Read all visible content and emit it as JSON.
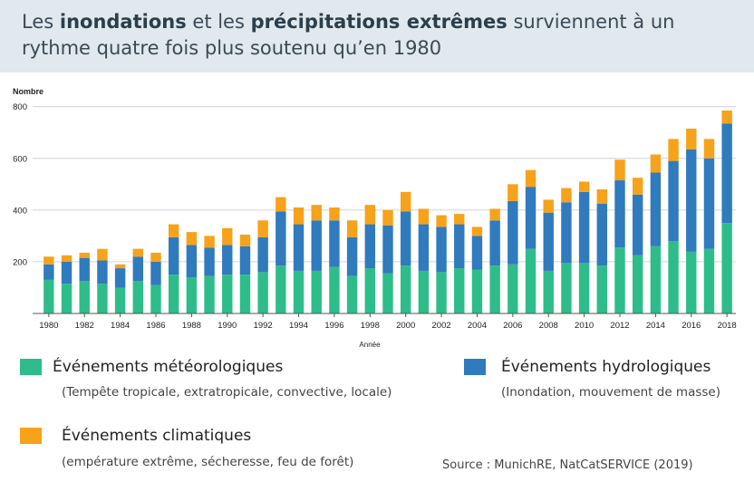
{
  "title": {
    "part1": "Les ",
    "bold1": "inondations",
    "part2": " et les ",
    "bold2": "précipitations extrêmes",
    "part3": " surviennent à un rythme quatre fois plus soutenu qu’en 1980"
  },
  "colors": {
    "meteorological": "#2ebd8a",
    "hydrological": "#2f7bbd",
    "climatological": "#f7a21b"
  },
  "legend": [
    {
      "key": "meteorological",
      "title": "Événements météorologiques",
      "subtitle": "(Tempête tropicale, extratropicale, convective, locale)"
    },
    {
      "key": "hydrological",
      "title": "Événements hydrologiques",
      "subtitle": "(Inondation, mouvement de masse)"
    },
    {
      "key": "climatological",
      "title": "Événements climatiques",
      "subtitle": "(empérature extrême, sécheresse, feu de forêt)"
    }
  ],
  "source": "Source : MunichRE, NatCatSERVICE (2019)",
  "chart_data": {
    "type": "bar",
    "stacked": true,
    "ylabel": "Nombre",
    "xlabel": "Année",
    "ylim": [
      0,
      820
    ],
    "yticks": [
      200,
      400,
      600,
      800
    ],
    "grid": true,
    "categories": [
      "1980",
      "1981",
      "1982",
      "1983",
      "1984",
      "1985",
      "1986",
      "1987",
      "1988",
      "1989",
      "1990",
      "1991",
      "1992",
      "1993",
      "1994",
      "1995",
      "1996",
      "1997",
      "1998",
      "1999",
      "2000",
      "2001",
      "2002",
      "2003",
      "2004",
      "2005",
      "2006",
      "2007",
      "2008",
      "2009",
      "2010",
      "2011",
      "2012",
      "2013",
      "2014",
      "2015",
      "2016",
      "2017",
      "2018"
    ],
    "xtick_labels": [
      "1980",
      "1982",
      "1984",
      "1986",
      "1988",
      "1990",
      "1992",
      "1994",
      "1996",
      "1998",
      "2000",
      "2002",
      "2004",
      "2006",
      "2008",
      "2010",
      "2012",
      "2014",
      "2016",
      "2018"
    ],
    "series": [
      {
        "name": "Événements météorologiques",
        "color": "#2ebd8a",
        "values": [
          130,
          115,
          125,
          115,
          100,
          125,
          110,
          150,
          140,
          145,
          150,
          150,
          160,
          185,
          165,
          165,
          180,
          145,
          175,
          155,
          185,
          165,
          160,
          175,
          170,
          185,
          190,
          250,
          165,
          195,
          195,
          185,
          255,
          225,
          260,
          280,
          240,
          250,
          350
        ]
      },
      {
        "name": "Événements hydrologiques",
        "color": "#2f7bbd",
        "values": [
          60,
          85,
          90,
          90,
          75,
          95,
          90,
          145,
          125,
          110,
          115,
          110,
          135,
          210,
          180,
          195,
          180,
          150,
          170,
          185,
          210,
          180,
          175,
          170,
          130,
          175,
          245,
          240,
          225,
          235,
          275,
          240,
          260,
          235,
          285,
          310,
          395,
          350,
          385
        ]
      },
      {
        "name": "Événements climatiques",
        "color": "#f7a21b",
        "values": [
          30,
          25,
          20,
          45,
          15,
          30,
          35,
          50,
          50,
          45,
          65,
          45,
          65,
          55,
          65,
          60,
          50,
          65,
          75,
          60,
          75,
          60,
          45,
          40,
          35,
          45,
          65,
          65,
          50,
          55,
          40,
          55,
          80,
          65,
          70,
          85,
          80,
          75,
          50
        ]
      }
    ]
  }
}
